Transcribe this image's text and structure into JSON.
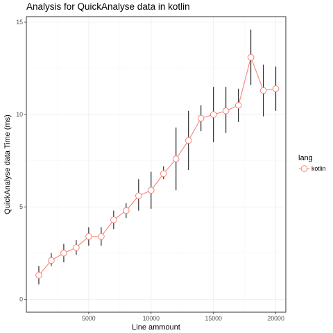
{
  "chart_data": {
    "type": "line",
    "title": "Analysis for QuickAnalyse data in kotlin",
    "xlabel": "Line ammount",
    "ylabel": "QuickAnalyse data Time (ms)",
    "xlim": [
      0,
      20800
    ],
    "ylim": [
      -0.7,
      15.3
    ],
    "xticks": [
      5000,
      10000,
      15000,
      20000
    ],
    "yticks": [
      0,
      5,
      10,
      15
    ],
    "xtick_labels": [
      "5000",
      "10000",
      "15000",
      "20000"
    ],
    "ytick_labels": [
      "0",
      "5",
      "10",
      "15"
    ],
    "grid": true,
    "legend": {
      "title": "lang",
      "placement": "right",
      "entries": [
        "kotlin"
      ]
    },
    "series": [
      {
        "name": "kotlin",
        "color": "#f8766d",
        "x": [
          1000,
          2000,
          3000,
          4000,
          5000,
          6000,
          7000,
          8000,
          9000,
          10000,
          11000,
          12000,
          13000,
          14000,
          15000,
          16000,
          17000,
          18000,
          19000,
          20000
        ],
        "y": [
          1.3,
          2.1,
          2.5,
          2.8,
          3.4,
          3.4,
          4.3,
          4.8,
          5.6,
          5.9,
          6.8,
          7.6,
          8.6,
          9.8,
          10.0,
          10.2,
          10.5,
          13.1,
          11.3,
          11.4
        ],
        "err_low": [
          0.8,
          1.8,
          2.0,
          2.4,
          2.9,
          2.9,
          3.8,
          4.4,
          4.8,
          4.9,
          6.5,
          5.9,
          7.0,
          9.1,
          8.5,
          9.0,
          9.6,
          11.6,
          9.9,
          10.2
        ],
        "err_high": [
          1.8,
          2.5,
          3.0,
          3.2,
          3.9,
          3.9,
          4.8,
          5.2,
          6.5,
          6.9,
          7.2,
          9.3,
          10.2,
          10.5,
          11.5,
          11.5,
          11.4,
          14.6,
          12.7,
          12.6
        ]
      }
    ]
  }
}
